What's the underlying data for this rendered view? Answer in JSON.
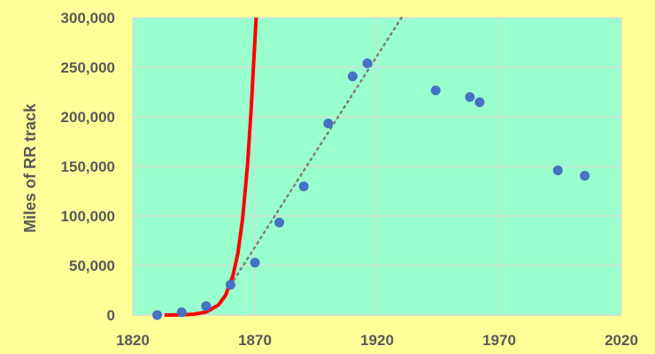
{
  "chart_data": {
    "type": "scatter",
    "title": "",
    "xlabel": "",
    "ylabel": "Miles of RR track",
    "xlim": [
      1820,
      2020
    ],
    "ylim": [
      0,
      300000
    ],
    "x_ticks": [
      {
        "value": 1820,
        "label": "1820"
      },
      {
        "value": 1870,
        "label": "1870"
      },
      {
        "value": 1920,
        "label": "1920"
      },
      {
        "value": 1970,
        "label": "1970"
      },
      {
        "value": 2020,
        "label": "2020"
      }
    ],
    "y_ticks": [
      {
        "value": 0,
        "label": "0"
      },
      {
        "value": 50000,
        "label": "50,000"
      },
      {
        "value": 100000,
        "label": "100,000"
      },
      {
        "value": 150000,
        "label": "150,000"
      },
      {
        "value": 200000,
        "label": "200,000"
      },
      {
        "value": 250000,
        "label": "250,000"
      },
      {
        "value": 300000,
        "label": "300,000"
      }
    ],
    "grid": true,
    "colors": {
      "page_background": "#ffff99",
      "plot_background": "#99ffcc",
      "points": "#4472c4",
      "exponential_curve": "#ff0000",
      "linear_trend": "#7f7f7f",
      "gridlines": "#d9d9d9",
      "text": "#595959"
    },
    "series": [
      {
        "kind": "points",
        "points": [
          {
            "x": 1830,
            "y": 23
          },
          {
            "x": 1840,
            "y": 2800
          },
          {
            "x": 1850,
            "y": 9000
          },
          {
            "x": 1860,
            "y": 30600
          },
          {
            "x": 1870,
            "y": 52900
          },
          {
            "x": 1880,
            "y": 93300
          },
          {
            "x": 1890,
            "y": 129800
          },
          {
            "x": 1900,
            "y": 193300
          },
          {
            "x": 1910,
            "y": 240800
          },
          {
            "x": 1916,
            "y": 254000
          },
          {
            "x": 1944,
            "y": 226700
          },
          {
            "x": 1958,
            "y": 220000
          },
          {
            "x": 1962,
            "y": 214700
          },
          {
            "x": 1994,
            "y": 146000
          },
          {
            "x": 2005,
            "y": 140500
          }
        ]
      },
      {
        "kind": "exponential-fit",
        "points": [
          {
            "x": 1833,
            "y": 0
          },
          {
            "x": 1840,
            "y": 300
          },
          {
            "x": 1845,
            "y": 900
          },
          {
            "x": 1850,
            "y": 3000
          },
          {
            "x": 1855,
            "y": 10000
          },
          {
            "x": 1858,
            "y": 20000
          },
          {
            "x": 1861,
            "y": 40000
          },
          {
            "x": 1863,
            "y": 62000
          },
          {
            "x": 1865,
            "y": 98000
          },
          {
            "x": 1867,
            "y": 152000
          },
          {
            "x": 1868.5,
            "y": 210000
          },
          {
            "x": 1869.5,
            "y": 255000
          },
          {
            "x": 1870.5,
            "y": 300000
          }
        ]
      },
      {
        "kind": "linear-trend",
        "points": [
          {
            "x": 1860,
            "y": 30000
          },
          {
            "x": 1930,
            "y": 300000
          }
        ]
      }
    ]
  }
}
